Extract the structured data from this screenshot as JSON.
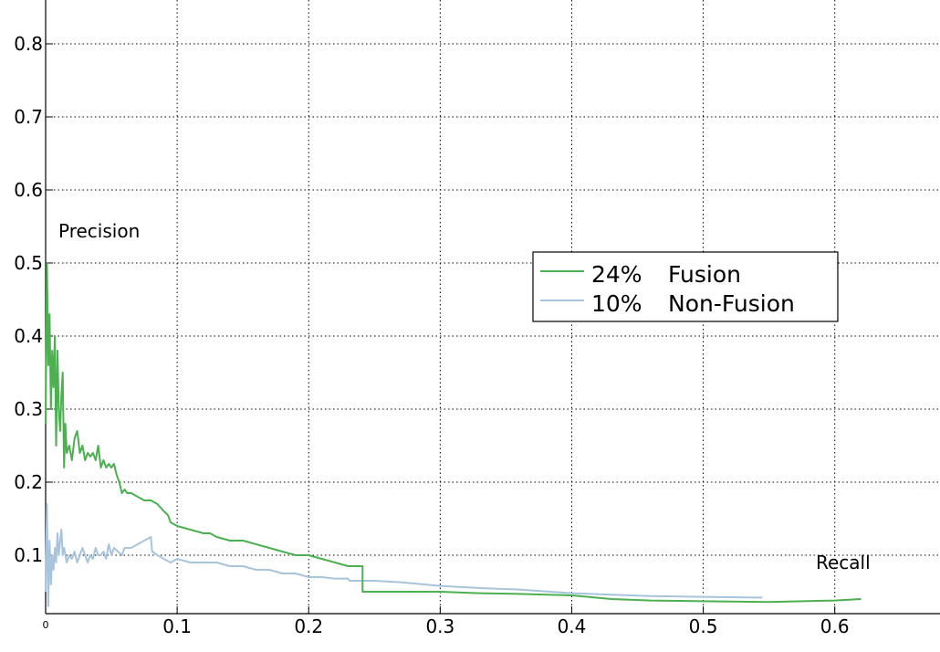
{
  "chart_data": {
    "type": "line",
    "title": "",
    "xlabel": "Recall",
    "ylabel": "Precision",
    "xlim": [
      0,
      0.68
    ],
    "ylim": [
      0.02,
      0.86
    ],
    "x_ticks": [
      "0",
      "0.1",
      "0.2",
      "0.3",
      "0.4",
      "0.5",
      "0.6"
    ],
    "y_ticks": [
      "0.1",
      "0.2",
      "0.3",
      "0.4",
      "0.5",
      "0.6",
      "0.7",
      "0.8"
    ],
    "grid": true,
    "legend": {
      "position": "upper-right",
      "entries": [
        {
          "pct": "24%",
          "label": "Fusion"
        },
        {
          "pct": "10%",
          "label": "Non-Fusion"
        }
      ]
    },
    "series": [
      {
        "name": "Fusion",
        "color": "#4caf50",
        "x": [
          0,
          0.001,
          0.002,
          0.003,
          0.004,
          0.005,
          0.006,
          0.007,
          0.008,
          0.009,
          0.01,
          0.011,
          0.012,
          0.013,
          0.014,
          0.015,
          0.016,
          0.018,
          0.02,
          0.022,
          0.024,
          0.026,
          0.028,
          0.03,
          0.032,
          0.034,
          0.036,
          0.038,
          0.04,
          0.042,
          0.044,
          0.046,
          0.048,
          0.05,
          0.052,
          0.054,
          0.056,
          0.058,
          0.06,
          0.062,
          0.065,
          0.07,
          0.075,
          0.08,
          0.085,
          0.09,
          0.093,
          0.095,
          0.1,
          0.11,
          0.12,
          0.125,
          0.13,
          0.14,
          0.15,
          0.16,
          0.17,
          0.18,
          0.19,
          0.2,
          0.21,
          0.22,
          0.23,
          0.241,
          0.241,
          0.26,
          0.28,
          0.3,
          0.33,
          0.36,
          0.4,
          0.43,
          0.46,
          0.5,
          0.55,
          0.6,
          0.62
        ],
        "y": [
          0.28,
          0.5,
          0.36,
          0.43,
          0.3,
          0.38,
          0.33,
          0.4,
          0.25,
          0.38,
          0.3,
          0.27,
          0.32,
          0.35,
          0.22,
          0.28,
          0.24,
          0.25,
          0.23,
          0.26,
          0.27,
          0.24,
          0.25,
          0.23,
          0.24,
          0.235,
          0.24,
          0.23,
          0.25,
          0.22,
          0.23,
          0.22,
          0.225,
          0.22,
          0.225,
          0.21,
          0.2,
          0.185,
          0.19,
          0.185,
          0.185,
          0.18,
          0.175,
          0.175,
          0.17,
          0.16,
          0.155,
          0.145,
          0.14,
          0.135,
          0.13,
          0.13,
          0.125,
          0.12,
          0.12,
          0.115,
          0.11,
          0.105,
          0.1,
          0.1,
          0.095,
          0.09,
          0.085,
          0.085,
          0.05,
          0.05,
          0.05,
          0.05,
          0.048,
          0.047,
          0.045,
          0.04,
          0.038,
          0.037,
          0.036,
          0.038,
          0.04
        ]
      },
      {
        "name": "Non-Fusion",
        "color": "#a8c4dc",
        "x": [
          0,
          0.001,
          0.002,
          0.003,
          0.004,
          0.005,
          0.006,
          0.007,
          0.008,
          0.009,
          0.01,
          0.011,
          0.012,
          0.013,
          0.014,
          0.016,
          0.018,
          0.02,
          0.022,
          0.024,
          0.026,
          0.028,
          0.03,
          0.032,
          0.034,
          0.036,
          0.038,
          0.04,
          0.042,
          0.044,
          0.046,
          0.048,
          0.05,
          0.052,
          0.055,
          0.058,
          0.06,
          0.065,
          0.07,
          0.075,
          0.08,
          0.081,
          0.085,
          0.09,
          0.095,
          0.1,
          0.11,
          0.12,
          0.13,
          0.14,
          0.15,
          0.16,
          0.17,
          0.18,
          0.19,
          0.2,
          0.21,
          0.22,
          0.23,
          0.231,
          0.25,
          0.27,
          0.3,
          0.33,
          0.36,
          0.4,
          0.43,
          0.46,
          0.5,
          0.54,
          0.545
        ],
        "y": [
          0.05,
          0.17,
          0.03,
          0.12,
          0.06,
          0.1,
          0.08,
          0.11,
          0.09,
          0.13,
          0.1,
          0.12,
          0.135,
          0.1,
          0.11,
          0.09,
          0.1,
          0.095,
          0.105,
          0.09,
          0.1,
          0.11,
          0.1,
          0.09,
          0.1,
          0.095,
          0.11,
          0.1,
          0.1,
          0.105,
          0.095,
          0.115,
          0.1,
          0.11,
          0.105,
          0.1,
          0.11,
          0.11,
          0.115,
          0.12,
          0.125,
          0.105,
          0.1,
          0.095,
          0.09,
          0.095,
          0.09,
          0.09,
          0.09,
          0.085,
          0.085,
          0.08,
          0.08,
          0.075,
          0.075,
          0.07,
          0.07,
          0.068,
          0.068,
          0.065,
          0.065,
          0.063,
          0.058,
          0.055,
          0.053,
          0.048,
          0.046,
          0.044,
          0.043,
          0.042,
          0.042
        ]
      }
    ]
  }
}
